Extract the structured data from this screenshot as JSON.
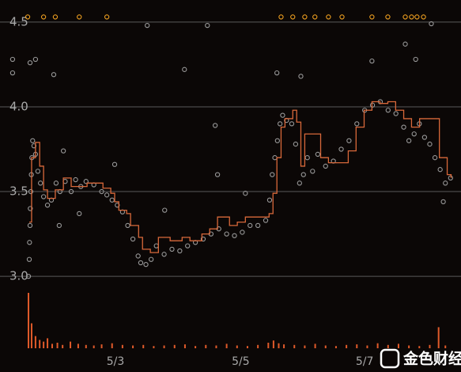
{
  "chart_data": [
    {
      "type": "scatter",
      "xlim": [
        0,
        174
      ],
      "ylim": [
        2.94,
        4.63
      ],
      "xticks": [
        {
          "value": 41.3,
          "label": "5/3"
        },
        {
          "value": 89.4,
          "label": "5/5"
        },
        {
          "value": 137,
          "label": "5/7"
        }
      ],
      "yticks": [
        {
          "value": 3,
          "label": "3.0"
        },
        3.5,
        {
          "value": 4,
          "label": "4.0"
        },
        4.5
      ],
      "grid": true,
      "series": [
        {
          "color": "#9a9a9a",
          "x": [
            1.8,
            1.8,
            8.5,
            10.6,
            17.6,
            67.8,
            79.6,
            53.5,
            76.6,
            60.2,
            103.3,
            112.5,
            152.6,
            139.8,
            156.6,
            162.6,
            80.5,
            91.2,
            41,
            21.3,
            19.7,
            27.4,
            167.2,
            7.9,
            8.2,
            8.3,
            8.5,
            8.6,
            8.8,
            9.0,
            9.2,
            9.5,
            10.0,
            10.6,
            11.5,
            12.5,
            13.7,
            15.2,
            16.7,
            18.5,
            20,
            22,
            24.3,
            26,
            28,
            30,
            33,
            36,
            38,
            40,
            42,
            44,
            46,
            48,
            50,
            51,
            53,
            55,
            57,
            60,
            63,
            66,
            69,
            72,
            75,
            78,
            81,
            84,
            87,
            90,
            93,
            96,
            99,
            100.5,
            101.5,
            102.5,
            103.5,
            104.5,
            105.5,
            107,
            109,
            110.5,
            112,
            113.5,
            115,
            117,
            119,
            122,
            125,
            128,
            131,
            134,
            137,
            140,
            143,
            146,
            149,
            152,
            154,
            156,
            158,
            160,
            162,
            164,
            166,
            168,
            170
          ],
          "values": [
            4.28,
            4.2,
            4.26,
            4.28,
            4.19,
            4.22,
            3.89,
            4.48,
            4.48,
            3.39,
            4.2,
            4.18,
            4.37,
            4.27,
            4.28,
            4.49,
            3.6,
            3.49,
            3.66,
            3.74,
            3.3,
            3.37,
            3.44,
            3.0,
            3.1,
            3.2,
            3.3,
            3.4,
            3.5,
            3.6,
            3.7,
            3.8,
            3.77,
            3.72,
            3.62,
            3.55,
            3.47,
            3.42,
            3.45,
            3.55,
            3.5,
            3.56,
            3.5,
            3.57,
            3.53,
            3.56,
            3.54,
            3.5,
            3.48,
            3.45,
            3.42,
            3.38,
            3.3,
            3.22,
            3.12,
            3.08,
            3.07,
            3.1,
            3.18,
            3.13,
            3.16,
            3.15,
            3.18,
            3.2,
            3.22,
            3.25,
            3.28,
            3.25,
            3.24,
            3.26,
            3.3,
            3.3,
            3.33,
            3.45,
            3.6,
            3.7,
            3.8,
            3.9,
            3.95,
            3.92,
            3.9,
            3.78,
            3.55,
            3.6,
            3.7,
            3.62,
            3.72,
            3.65,
            3.68,
            3.75,
            3.8,
            3.9,
            3.98,
            4.01,
            4.03,
            3.98,
            3.96,
            3.88,
            3.8,
            3.84,
            3.9,
            3.82,
            3.78,
            3.7,
            3.63,
            3.55,
            3.58
          ]
        },
        {
          "color": "#f0a020",
          "x": [
            7.6,
            13.7,
            18.2,
            27.4,
            38.0,
            104.9,
            109.4,
            114.0,
            117.9,
            123.1,
            128.3,
            139.8,
            145.9,
            152.6,
            155.0,
            157.1,
            159.6
          ],
          "values": [
            4.53,
            4.53,
            4.53,
            4.53,
            4.53,
            4.53,
            4.53,
            4.53,
            4.53,
            4.53,
            4.53,
            4.53,
            4.53,
            4.53,
            4.53,
            4.53,
            4.53
          ]
        }
      ]
    },
    {
      "type": "step",
      "color": "#d8683a",
      "xlim": [
        0,
        174
      ],
      "ylim": [
        2.94,
        4.63
      ],
      "x": [
        8.2,
        9.1,
        10.6,
        12.2,
        13.7,
        15.2,
        18.2,
        21.3,
        24.3,
        27.4,
        30.4,
        33.4,
        36.5,
        39.5,
        41.0,
        42.6,
        45.6,
        47.1,
        50.2,
        51.7,
        54.7,
        57.8,
        62.3,
        66.9,
        69.9,
        74.5,
        77.5,
        80.5,
        85.1,
        88.1,
        91.2,
        97.3,
        100.3,
        101.8,
        103.3,
        104.9,
        106.4,
        109.4,
        110.9,
        112.5,
        114.0,
        117.0,
        120.1,
        123.1,
        127.7,
        130.7,
        133.7,
        136.8,
        139.8,
        142.9,
        145.9,
        148.9,
        152.0,
        155.0,
        158.1,
        162.6,
        165.7,
        168.7,
        170.2
      ],
      "values": [
        3.32,
        3.7,
        3.79,
        3.65,
        3.51,
        3.46,
        3.51,
        3.58,
        3.53,
        3.53,
        3.55,
        3.55,
        3.52,
        3.49,
        3.44,
        3.39,
        3.37,
        3.3,
        3.23,
        3.16,
        3.14,
        3.23,
        3.21,
        3.23,
        3.21,
        3.25,
        3.28,
        3.35,
        3.3,
        3.32,
        3.35,
        3.35,
        3.37,
        3.49,
        3.7,
        3.88,
        3.93,
        3.98,
        3.91,
        3.65,
        3.84,
        3.84,
        3.7,
        3.67,
        3.67,
        3.74,
        3.88,
        3.98,
        4.03,
        4.02,
        4.03,
        3.98,
        3.93,
        3.88,
        3.93,
        3.93,
        3.7,
        3.6,
        3.58
      ]
    },
    {
      "type": "bar",
      "color": "#e05a2a",
      "xlim": [
        0,
        174
      ],
      "ylim": [
        0,
        100
      ],
      "x": [
        7.9,
        9.1,
        10.6,
        12.2,
        13.7,
        15.2,
        17,
        19,
        21,
        24,
        27,
        30,
        33,
        36,
        40,
        44,
        48,
        52,
        56,
        60,
        64,
        68,
        72,
        76,
        80,
        84,
        88,
        92,
        96,
        100,
        102,
        104,
        106,
        110,
        114,
        118,
        122,
        126,
        130,
        134,
        138,
        142,
        146,
        150,
        154,
        158,
        162,
        165.4,
        168
      ],
      "values": [
        100,
        45,
        22,
        15,
        12,
        18,
        8,
        10,
        6,
        12,
        8,
        6,
        5,
        7,
        9,
        6,
        5,
        6,
        4,
        5,
        6,
        7,
        4,
        6,
        5,
        8,
        5,
        4,
        6,
        10,
        14,
        9,
        7,
        6,
        5,
        8,
        5,
        4,
        6,
        7,
        5,
        9,
        6,
        8,
        5,
        4,
        6,
        38,
        5
      ]
    }
  ],
  "watermark": "金色财经"
}
